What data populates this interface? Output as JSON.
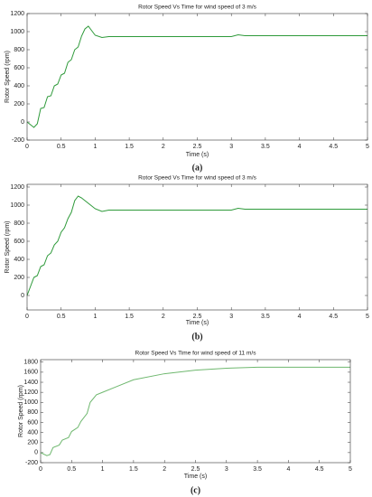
{
  "chart_data": [
    {
      "type": "line",
      "title": "Rotor Speed Vs Time for wind speed of 3 m/s",
      "x_label": "Time (s)",
      "y_label": "Rotor Speed (rpm)",
      "caption": "(a)",
      "x": [
        0,
        0.05,
        0.1,
        0.15,
        0.2,
        0.25,
        0.3,
        0.35,
        0.4,
        0.45,
        0.5,
        0.55,
        0.6,
        0.65,
        0.7,
        0.75,
        0.8,
        0.85,
        0.9,
        0.95,
        1.0,
        1.1,
        1.2,
        1.3,
        1.5,
        2,
        2.5,
        3,
        3.1,
        3.2,
        3.5,
        4,
        4.5,
        5
      ],
      "series": [
        {
          "name": "Rotor speed",
          "color": "#2e9a3a",
          "values": [
            0,
            -30,
            -60,
            -20,
            150,
            160,
            280,
            290,
            400,
            420,
            520,
            540,
            660,
            690,
            800,
            830,
            950,
            1030,
            1060,
            1010,
            960,
            935,
            945,
            945,
            945,
            945,
            945,
            945,
            965,
            955,
            955,
            955,
            955,
            955
          ]
        }
      ],
      "xlim": [
        0,
        5
      ],
      "xticks": [
        0,
        0.5,
        1,
        1.5,
        2,
        2.5,
        3,
        3.5,
        4,
        4.5,
        5
      ],
      "ylim": [
        -200,
        1200
      ],
      "yticks": [
        -200,
        0,
        200,
        400,
        600,
        800,
        1000,
        1200
      ]
    },
    {
      "type": "line",
      "title": "Rotor Speed Vs Time for wind speed of 3 m/s",
      "x_label": "Time (s)",
      "y_label": "Rotor Speed (rpm)",
      "caption": "(b)",
      "x": [
        0,
        0.05,
        0.1,
        0.15,
        0.2,
        0.25,
        0.3,
        0.35,
        0.4,
        0.45,
        0.5,
        0.55,
        0.6,
        0.65,
        0.7,
        0.75,
        0.8,
        0.9,
        1.0,
        1.1,
        1.2,
        1.5,
        2,
        3,
        3.1,
        3.2,
        4,
        5
      ],
      "series": [
        {
          "name": "Rotor speed",
          "color": "#2e9a3a",
          "values": [
            0,
            100,
            200,
            220,
            320,
            340,
            440,
            470,
            560,
            600,
            700,
            750,
            850,
            920,
            1050,
            1100,
            1080,
            1020,
            960,
            930,
            945,
            945,
            945,
            945,
            965,
            955,
            955,
            955
          ]
        }
      ],
      "xlim": [
        0,
        5
      ],
      "xticks": [
        0,
        0.5,
        1,
        1.5,
        2,
        2.5,
        3,
        3.5,
        4,
        4.5,
        5
      ],
      "ylim": [
        -160,
        1230
      ],
      "yticks": [
        0,
        200,
        400,
        600,
        800,
        1000,
        1200
      ]
    },
    {
      "type": "line",
      "title": "Rotor Speed Vs Time for wind speed of 11 m/s",
      "x_label": "Time (s)",
      "y_label": "Rotor Speed (rpm)",
      "caption": "(c)",
      "x": [
        0,
        0.05,
        0.1,
        0.15,
        0.2,
        0.3,
        0.35,
        0.45,
        0.5,
        0.6,
        0.65,
        0.75,
        0.8,
        0.9,
        1.0,
        1.2,
        1.5,
        2,
        2.5,
        3,
        3.5,
        4,
        4.5,
        5
      ],
      "series": [
        {
          "name": "Rotor speed",
          "color": "#6fb86f",
          "values": [
            0,
            -30,
            -60,
            -40,
            100,
            150,
            250,
            300,
            420,
            500,
            620,
            780,
            1000,
            1150,
            1200,
            1300,
            1450,
            1570,
            1640,
            1680,
            1700,
            1700,
            1700,
            1700
          ]
        }
      ],
      "xlim": [
        0,
        5
      ],
      "xticks": [
        0,
        0.5,
        1,
        1.5,
        2,
        2.5,
        3,
        3.5,
        4,
        4.5,
        5
      ],
      "ylim": [
        -200,
        1850
      ],
      "yticks": [
        -200,
        0,
        200,
        400,
        600,
        800,
        1000,
        1200,
        1400,
        1600,
        1800
      ]
    }
  ]
}
